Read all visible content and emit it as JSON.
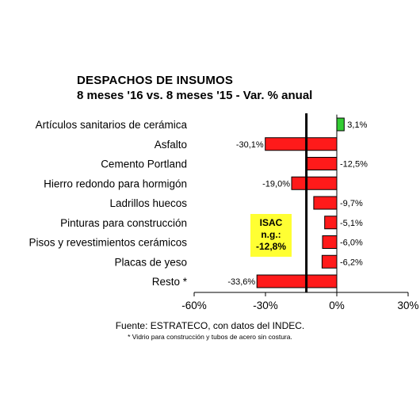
{
  "chart_data": {
    "type": "bar",
    "orientation": "horizontal",
    "title": "DESPACHOS DE INSUMOS",
    "subtitle": "8 meses '16 vs. 8 meses '15 - Var. % anual",
    "categories": [
      "Artículos sanitarios de cerámica",
      "Asfalto",
      "Cemento Portland",
      "Hierro redondo para hormigón",
      "Ladrillos huecos",
      "Pinturas para construcción",
      "Pisos y revestimientos cerámicos",
      "Placas de yeso",
      "Resto *"
    ],
    "values": [
      3.1,
      -30.1,
      -12.5,
      -19.0,
      -9.7,
      -5.1,
      -6.0,
      -6.2,
      -33.6
    ],
    "value_labels": [
      "3,1%",
      "-30,1%",
      "-12,5%",
      "-19,0%",
      "-9,7%",
      "-5,1%",
      "-6,0%",
      "-6,2%",
      "-33,6%"
    ],
    "colors": {
      "positive": "#33cc33",
      "negative": "#ff1a1a",
      "reference_line": "#000000",
      "isac_box": "#ffff33"
    },
    "xlim": [
      -60,
      30
    ],
    "x_ticks": [
      -60,
      -30,
      0,
      30
    ],
    "x_tick_labels": [
      "-60%",
      "-30%",
      "0%",
      "30%"
    ],
    "reference_line": {
      "value": -12.8,
      "label_lines": [
        "ISAC",
        "n.g.:",
        "-12,8%"
      ]
    },
    "grid": false,
    "source": "Fuente: ESTRATECO, con datos del INDEC.",
    "footnote": "* Vidrio para construcción y tubos de acero sin costura."
  }
}
